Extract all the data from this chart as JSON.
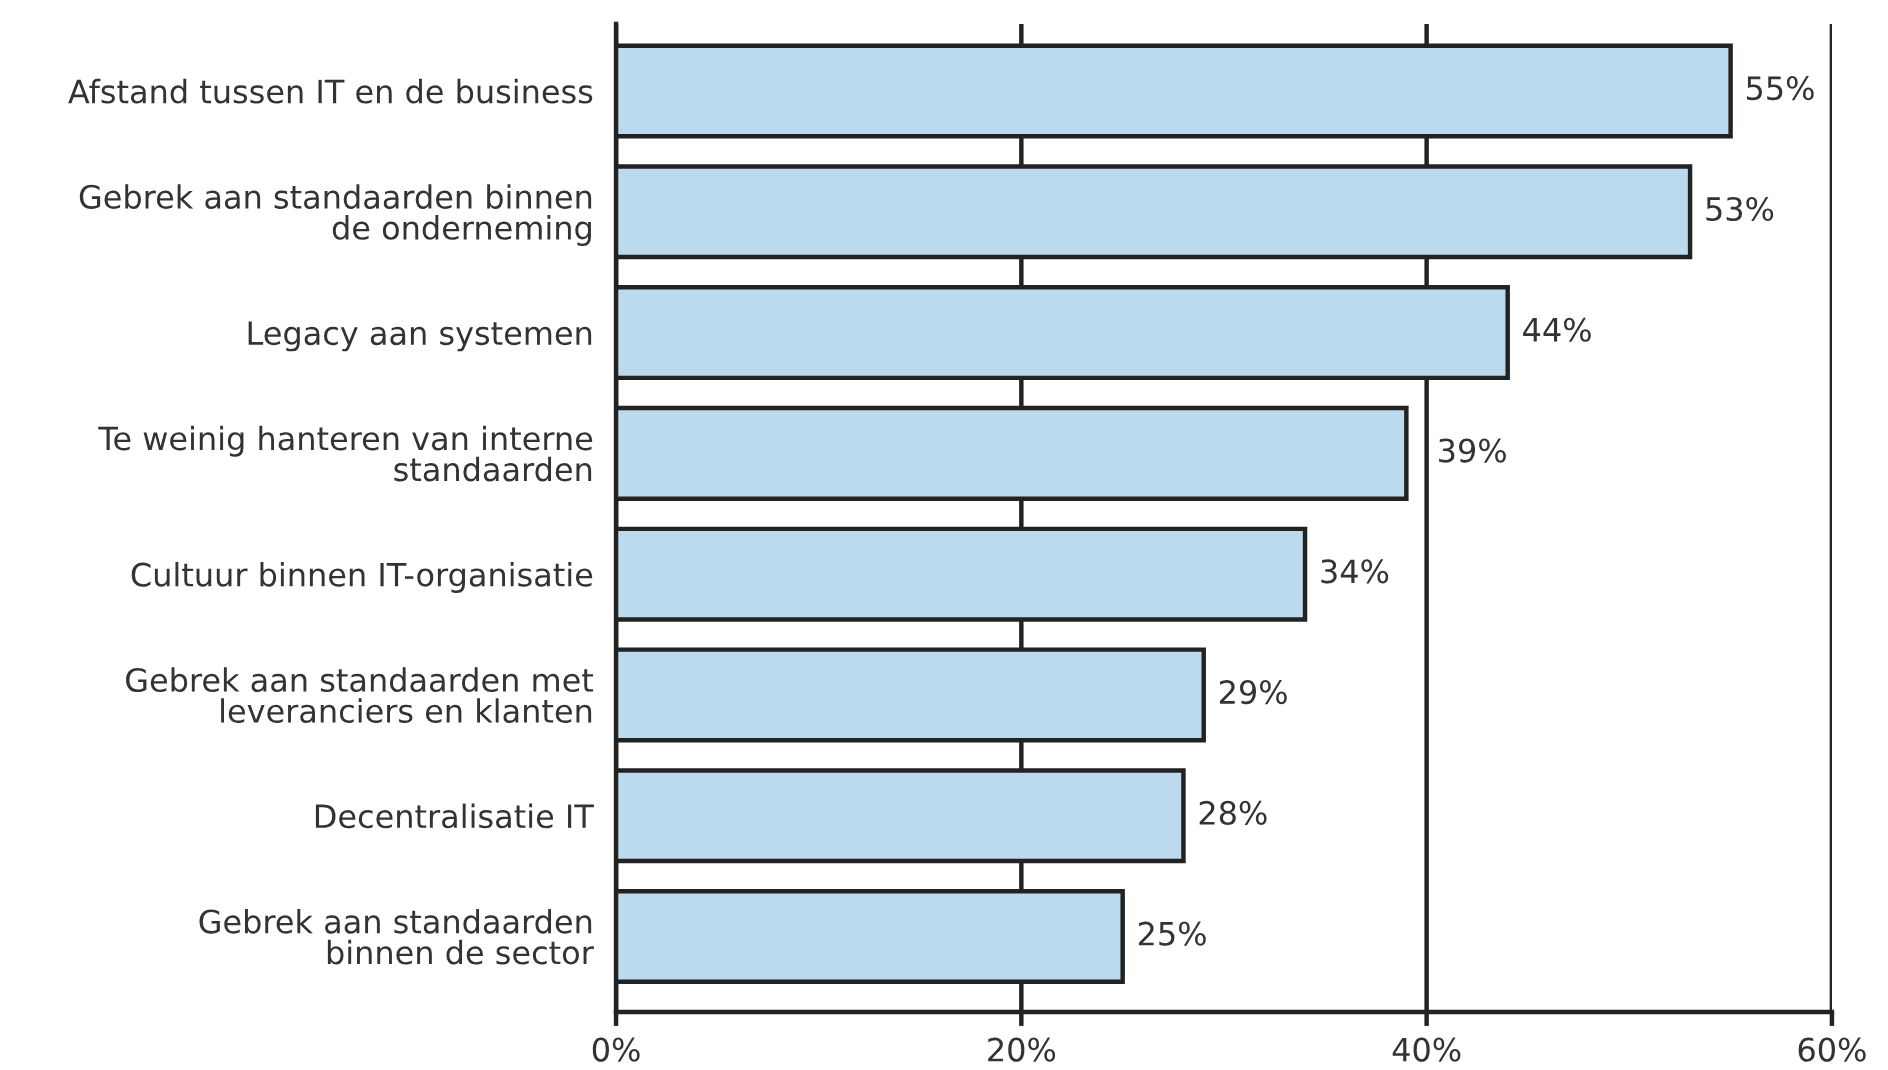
{
  "chart_data": {
    "type": "bar",
    "orientation": "horizontal",
    "categories": [
      "Afstand tussen IT en de business",
      "Gebrek aan standaarden binnen\nde onderneming",
      "Legacy aan systemen",
      "Te weinig hanteren van interne\nstandaarden",
      "Cultuur binnen IT-organisatie",
      "Gebrek aan standaarden met\nleveranciers en klanten",
      "Decentralisatie IT",
      "Gebrek aan standaarden\nbinnen de sector"
    ],
    "values": [
      55,
      53,
      44,
      39,
      34,
      29,
      28,
      25
    ],
    "value_labels": [
      "55%",
      "53%",
      "44%",
      "39%",
      "34%",
      "29%",
      "28%",
      "25%"
    ],
    "color": "#bcdaed",
    "xlim": [
      0,
      60
    ],
    "xticks": [
      {
        "value": 0,
        "label": "0%"
      },
      {
        "value": 20,
        "label": "20%"
      },
      {
        "value": 40,
        "label": "40%"
      },
      {
        "value": 60,
        "label": "60%"
      }
    ],
    "grid": "x"
  }
}
